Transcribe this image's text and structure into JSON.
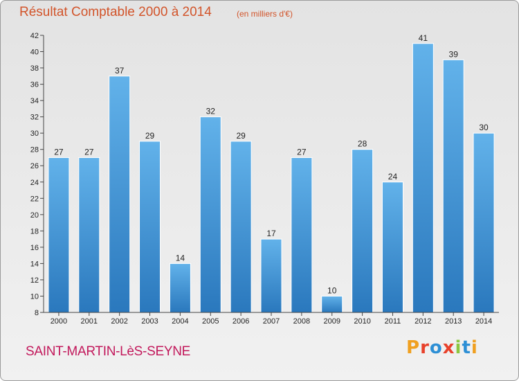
{
  "header": {
    "title": "Résultat Comptable 2000 à 2014",
    "subtitle": "(en milliers d'€)"
  },
  "footer": {
    "commune": "SAINT-MARTIN-LèS-SEYNE",
    "brand": "Proxiti",
    "brand_colors": [
      "#f0a020",
      "#e8412b",
      "#2d8fd5",
      "#e8412b",
      "#8cc63f",
      "#2d8fd5",
      "#f0a020"
    ]
  },
  "colors": {
    "bar_light": "#62b2ea",
    "bar_dark": "#2a78bd",
    "title": "#d2542a",
    "commune": "#c2185b"
  },
  "chart_data": {
    "type": "bar",
    "title": "Résultat Comptable 2000 à 2014",
    "subtitle": "(en milliers d'€)",
    "xlabel": "",
    "ylabel": "",
    "categories": [
      "2000",
      "2001",
      "2002",
      "2003",
      "2004",
      "2005",
      "2006",
      "2007",
      "2008",
      "2009",
      "2010",
      "2011",
      "2012",
      "2013",
      "2014"
    ],
    "values": [
      27,
      27,
      37,
      29,
      14,
      32,
      29,
      17,
      27,
      10,
      28,
      24,
      41,
      39,
      30
    ],
    "ylim": [
      8,
      42
    ],
    "yticks": [
      8,
      10,
      12,
      14,
      16,
      18,
      20,
      22,
      24,
      26,
      28,
      30,
      32,
      34,
      36,
      38,
      40,
      42
    ],
    "grid": false,
    "legend": "none",
    "data_labels": true
  }
}
